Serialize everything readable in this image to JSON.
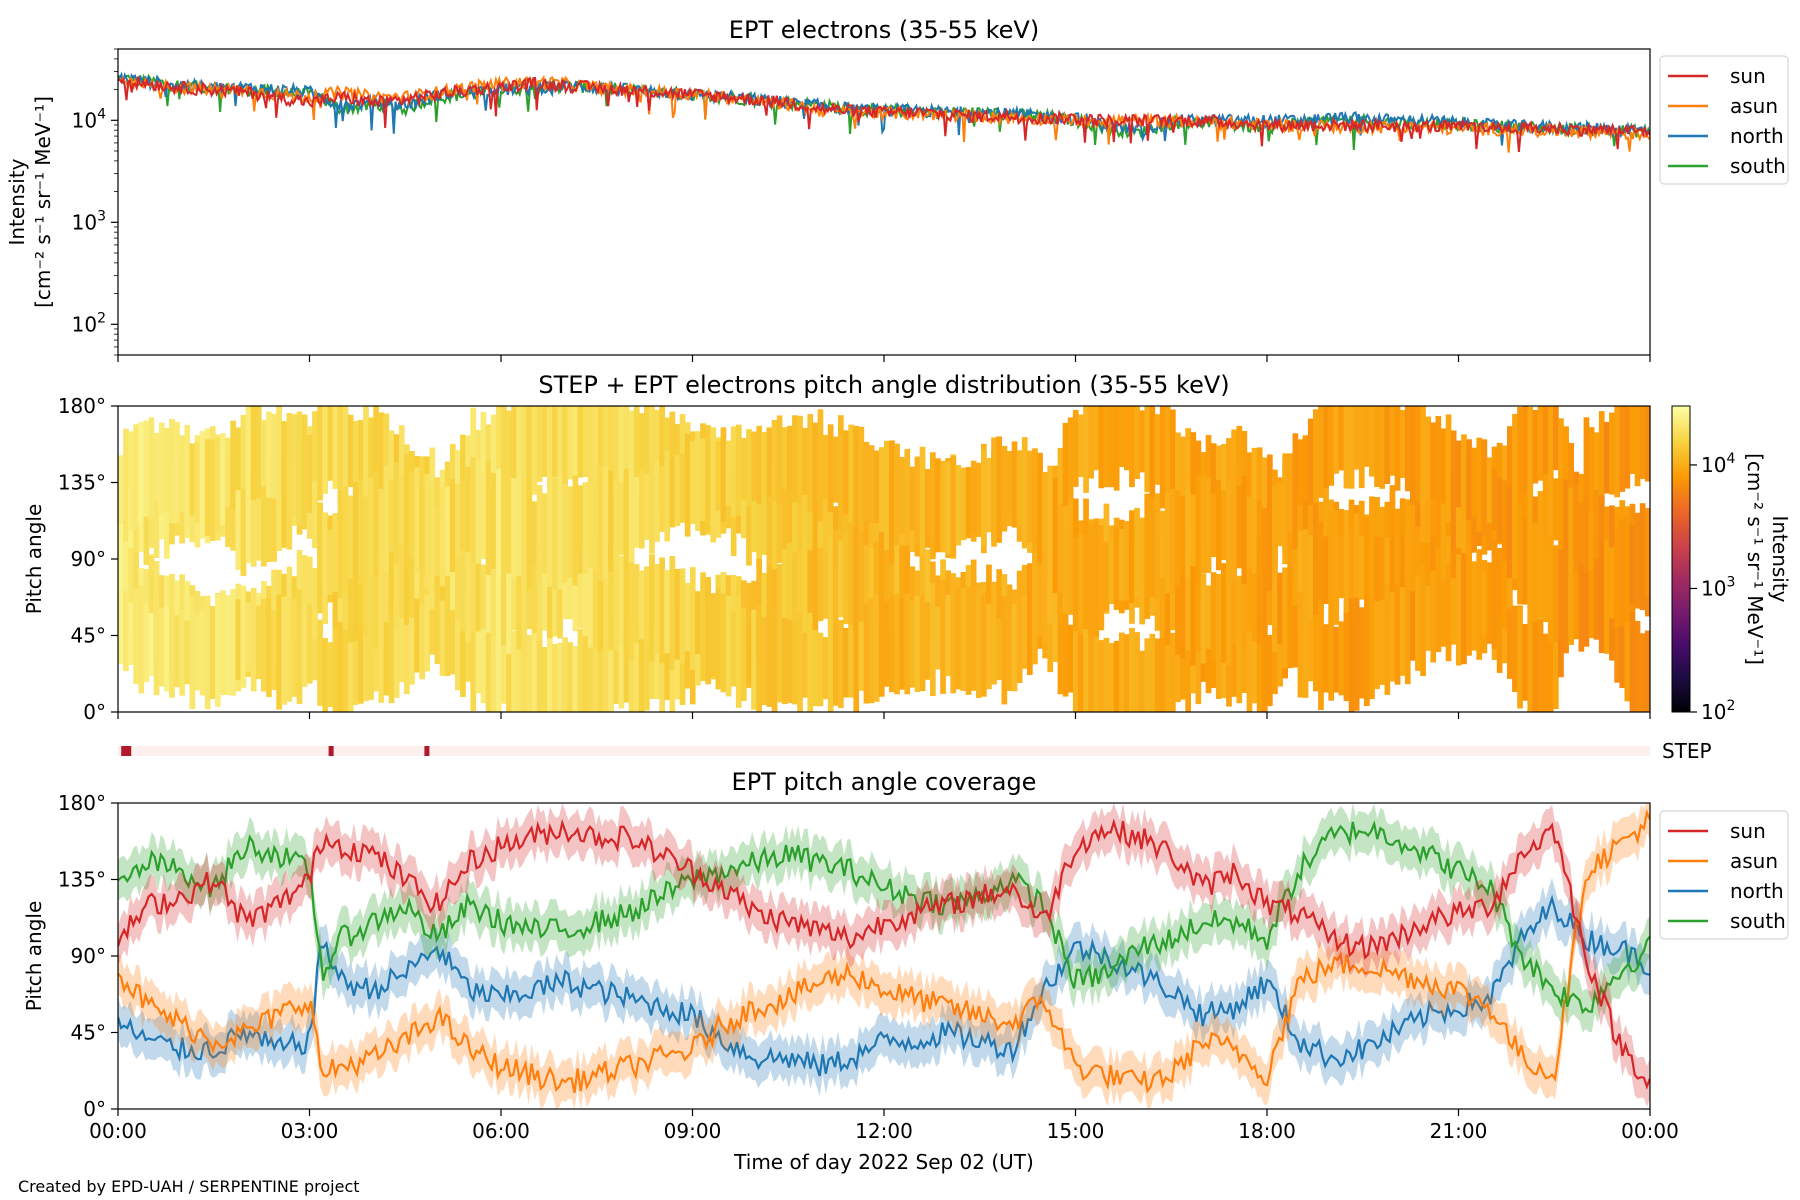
{
  "credit": "Created by EPD-UAH / SERPENTINE project",
  "xaxis": {
    "label": "Time of day 2022 Sep 02 (UT)",
    "ticks": [
      "00:00",
      "03:00",
      "06:00",
      "09:00",
      "12:00",
      "15:00",
      "18:00",
      "21:00",
      "00:00"
    ]
  },
  "colors": {
    "sun": "#d62728",
    "asun": "#ff7f0e",
    "north": "#1f77b4",
    "south": "#2ca02c"
  },
  "chart_data": [
    {
      "type": "line",
      "title": "EPT electrons (35-55 keV)",
      "ylabel_line1": "Intensity",
      "ylabel_line2": "[cm⁻² s⁻¹ sr⁻¹ MeV⁻¹]",
      "yscale": "log",
      "ylim": [
        50,
        50000
      ],
      "yticks": [
        {
          "v": 100,
          "base": "10",
          "exp": "2"
        },
        {
          "v": 1000,
          "base": "10",
          "exp": "3"
        },
        {
          "v": 10000,
          "base": "10",
          "exp": "4"
        }
      ],
      "x_hours": [
        0,
        0.5,
        1,
        1.5,
        2,
        2.5,
        3,
        3.5,
        4,
        4.5,
        5,
        5.5,
        6,
        6.5,
        7,
        7.5,
        8,
        8.5,
        9,
        9.5,
        10,
        10.5,
        11,
        11.5,
        12,
        12.5,
        13,
        13.5,
        14,
        14.5,
        15,
        15.5,
        16,
        16.5,
        17,
        17.5,
        18,
        18.5,
        19,
        19.5,
        20,
        20.5,
        21,
        21.5,
        22,
        22.5,
        23,
        23.5,
        24
      ],
      "series": [
        {
          "name": "sun",
          "values": [
            25000,
            23000,
            21000,
            20000,
            19000,
            17000,
            15000,
            17000,
            15000,
            16000,
            18000,
            20000,
            21000,
            23000,
            22000,
            21000,
            20000,
            19000,
            18000,
            17000,
            16000,
            15000,
            13000,
            12500,
            12000,
            12000,
            11500,
            11000,
            11000,
            10500,
            10500,
            10000,
            10000,
            10000,
            10000,
            9500,
            9000,
            9000,
            9000,
            9000,
            8800,
            8800,
            8600,
            8500,
            8400,
            8300,
            8200,
            8000,
            7800
          ]
        },
        {
          "name": "asun",
          "values": [
            23000,
            22000,
            21000,
            20000,
            20000,
            18000,
            17000,
            19000,
            17000,
            17000,
            19000,
            21000,
            23000,
            24000,
            23000,
            21000,
            20000,
            19000,
            18000,
            17000,
            15500,
            14500,
            12500,
            12000,
            12000,
            11500,
            11500,
            11000,
            10500,
            10500,
            10000,
            10000,
            10000,
            9800,
            9600,
            9400,
            9000,
            9000,
            8800,
            8700,
            8600,
            8500,
            8300,
            8200,
            8100,
            8000,
            7800,
            7600,
            7200
          ]
        },
        {
          "name": "north",
          "values": [
            26000,
            24000,
            22000,
            21000,
            21000,
            20000,
            19000,
            14000,
            15000,
            14000,
            18000,
            19000,
            20000,
            21000,
            22000,
            21000,
            20000,
            19000,
            18000,
            17000,
            16000,
            15000,
            14000,
            13000,
            12500,
            12500,
            12000,
            12000,
            11500,
            11000,
            10500,
            9000,
            8000,
            10000,
            10000,
            10000,
            10000,
            10000,
            10500,
            10500,
            10000,
            10000,
            9500,
            9000,
            8800,
            8600,
            8400,
            8200,
            8000
          ]
        },
        {
          "name": "south",
          "values": [
            26000,
            24000,
            22000,
            21000,
            20000,
            19000,
            18000,
            13000,
            14000,
            13000,
            17000,
            18000,
            20000,
            21000,
            22000,
            21000,
            20000,
            19000,
            18000,
            17000,
            16000,
            15000,
            14000,
            13000,
            12500,
            12500,
            12000,
            12000,
            11500,
            11000,
            10000,
            8500,
            7500,
            9500,
            9500,
            9000,
            8500,
            9500,
            10000,
            10000,
            9500,
            9500,
            9000,
            8800,
            8600,
            8400,
            8200,
            8000,
            7800
          ]
        }
      ]
    },
    {
      "type": "heatmap",
      "title": "STEP + EPT electrons pitch angle distribution (35-55 keV)",
      "ylabel": "Pitch angle",
      "ylim": [
        0,
        180
      ],
      "yticks": [
        "0°",
        "45°",
        "90°",
        "135°",
        "180°"
      ],
      "colorbar": {
        "label_line1": "Intensity",
        "label_line2": "[cm⁻² s⁻¹ sr⁻¹ MeV⁻¹]",
        "scale": "log",
        "range": [
          100,
          30000
        ],
        "ticks": [
          {
            "v": 100,
            "base": "10",
            "exp": "2"
          },
          {
            "v": 1000,
            "base": "10",
            "exp": "3"
          },
          {
            "v": 10000,
            "base": "10",
            "exp": "4"
          }
        ],
        "colors": [
          "#000004",
          "#1b0c41",
          "#4a0c6b",
          "#781c6d",
          "#a52c60",
          "#cf4446",
          "#ed6925",
          "#fb9b06",
          "#f7d13d",
          "#fcffa4"
        ]
      },
      "intensity_hours": [
        0,
        2,
        4,
        6,
        8,
        10,
        12,
        14,
        16,
        18,
        20,
        22,
        24
      ],
      "intensity_values": [
        23000,
        20000,
        17000,
        21000,
        19000,
        15000,
        12000,
        11000,
        10000,
        9500,
        9000,
        8500,
        8000
      ],
      "step_label": "STEP",
      "step_marks_hours": [
        0.05,
        3.3,
        4.8
      ]
    },
    {
      "type": "line",
      "title": "EPT pitch angle coverage",
      "ylabel": "Pitch angle",
      "ylim": [
        0,
        180
      ],
      "yticks": [
        "0°",
        "45°",
        "90°",
        "135°",
        "180°"
      ],
      "x_hours": [
        0,
        0.5,
        1,
        1.5,
        2,
        2.5,
        3,
        3.2,
        3.5,
        4,
        4.5,
        5,
        5.5,
        6,
        6.5,
        7,
        7.5,
        8,
        8.5,
        9,
        9.5,
        10,
        10.5,
        11,
        11.5,
        12,
        12.5,
        13,
        13.5,
        14,
        14.5,
        15,
        15.5,
        16,
        16.5,
        17,
        17.5,
        18,
        18.5,
        19,
        19.5,
        20,
        20.5,
        21,
        21.5,
        22,
        22.5,
        23,
        23.5,
        24
      ],
      "series": [
        {
          "name": "sun",
          "values": [
            100,
            120,
            125,
            135,
            110,
            120,
            135,
            160,
            155,
            150,
            135,
            120,
            145,
            155,
            160,
            165,
            160,
            160,
            150,
            140,
            130,
            115,
            110,
            105,
            100,
            110,
            115,
            120,
            125,
            130,
            110,
            155,
            165,
            160,
            150,
            130,
            140,
            120,
            115,
            100,
            95,
            100,
            110,
            115,
            120,
            150,
            165,
            90,
            40,
            15
          ]
        },
        {
          "name": "asun",
          "values": [
            80,
            60,
            50,
            40,
            45,
            55,
            65,
            20,
            25,
            30,
            40,
            55,
            35,
            25,
            20,
            15,
            20,
            25,
            30,
            35,
            50,
            60,
            65,
            75,
            80,
            70,
            65,
            60,
            55,
            50,
            65,
            25,
            20,
            15,
            20,
            40,
            35,
            20,
            75,
            85,
            85,
            80,
            75,
            70,
            60,
            30,
            20,
            140,
            155,
            170
          ]
        },
        {
          "name": "north",
          "values": [
            50,
            40,
            35,
            35,
            45,
            35,
            40,
            100,
            75,
            70,
            80,
            95,
            70,
            65,
            70,
            75,
            70,
            65,
            60,
            55,
            40,
            30,
            30,
            25,
            30,
            40,
            40,
            45,
            40,
            35,
            70,
            95,
            90,
            80,
            70,
            55,
            60,
            75,
            40,
            30,
            35,
            45,
            55,
            60,
            65,
            100,
            120,
            100,
            95,
            85
          ]
        },
        {
          "name": "south",
          "values": [
            130,
            145,
            140,
            130,
            155,
            150,
            140,
            80,
            100,
            110,
            120,
            100,
            120,
            110,
            105,
            105,
            110,
            115,
            125,
            135,
            140,
            145,
            150,
            145,
            140,
            130,
            125,
            120,
            125,
            135,
            120,
            75,
            80,
            95,
            100,
            110,
            110,
            100,
            140,
            160,
            165,
            160,
            150,
            140,
            130,
            90,
            70,
            60,
            80,
            95
          ]
        }
      ]
    }
  ]
}
